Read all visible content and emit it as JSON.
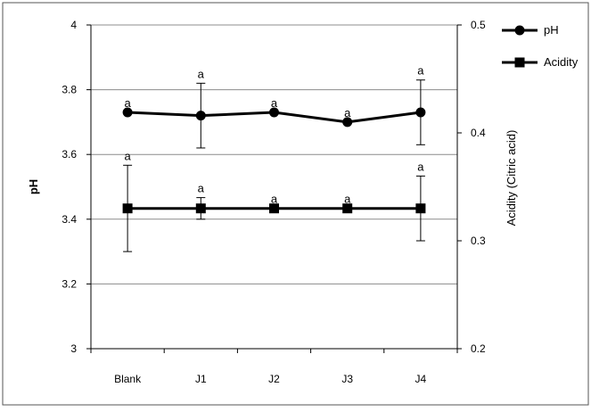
{
  "chart_data": {
    "type": "line",
    "categories": [
      "Blank",
      "J1",
      "J2",
      "J3",
      "J4"
    ],
    "y_left": {
      "label": "pH",
      "range": [
        3,
        4
      ],
      "ticks": [
        "3",
        "3.2",
        "3.4",
        "3.6",
        "3.8",
        "4"
      ]
    },
    "y_right": {
      "label": "Acidity (Citric acid)",
      "range": [
        0.2,
        0.5
      ],
      "ticks": [
        "0.2",
        "0.3",
        "0.4",
        "0.5"
      ]
    },
    "grid": "horizontal",
    "legend_position": "top-right",
    "series": [
      {
        "name": "pH",
        "axis": "left",
        "marker": "circle",
        "values": [
          3.73,
          3.72,
          3.73,
          3.7,
          3.73
        ],
        "error": [
          0,
          0.1,
          0,
          0,
          0.1
        ],
        "significance": [
          "a",
          "a",
          "a",
          "a",
          "a"
        ]
      },
      {
        "name": "Acidity",
        "axis": "right",
        "marker": "square",
        "values": [
          0.33,
          0.33,
          0.33,
          0.33,
          0.33
        ],
        "error": [
          0.04,
          0.01,
          0,
          0,
          0.03
        ],
        "significance": [
          "a",
          "a",
          "a",
          "a",
          "a"
        ]
      }
    ]
  }
}
